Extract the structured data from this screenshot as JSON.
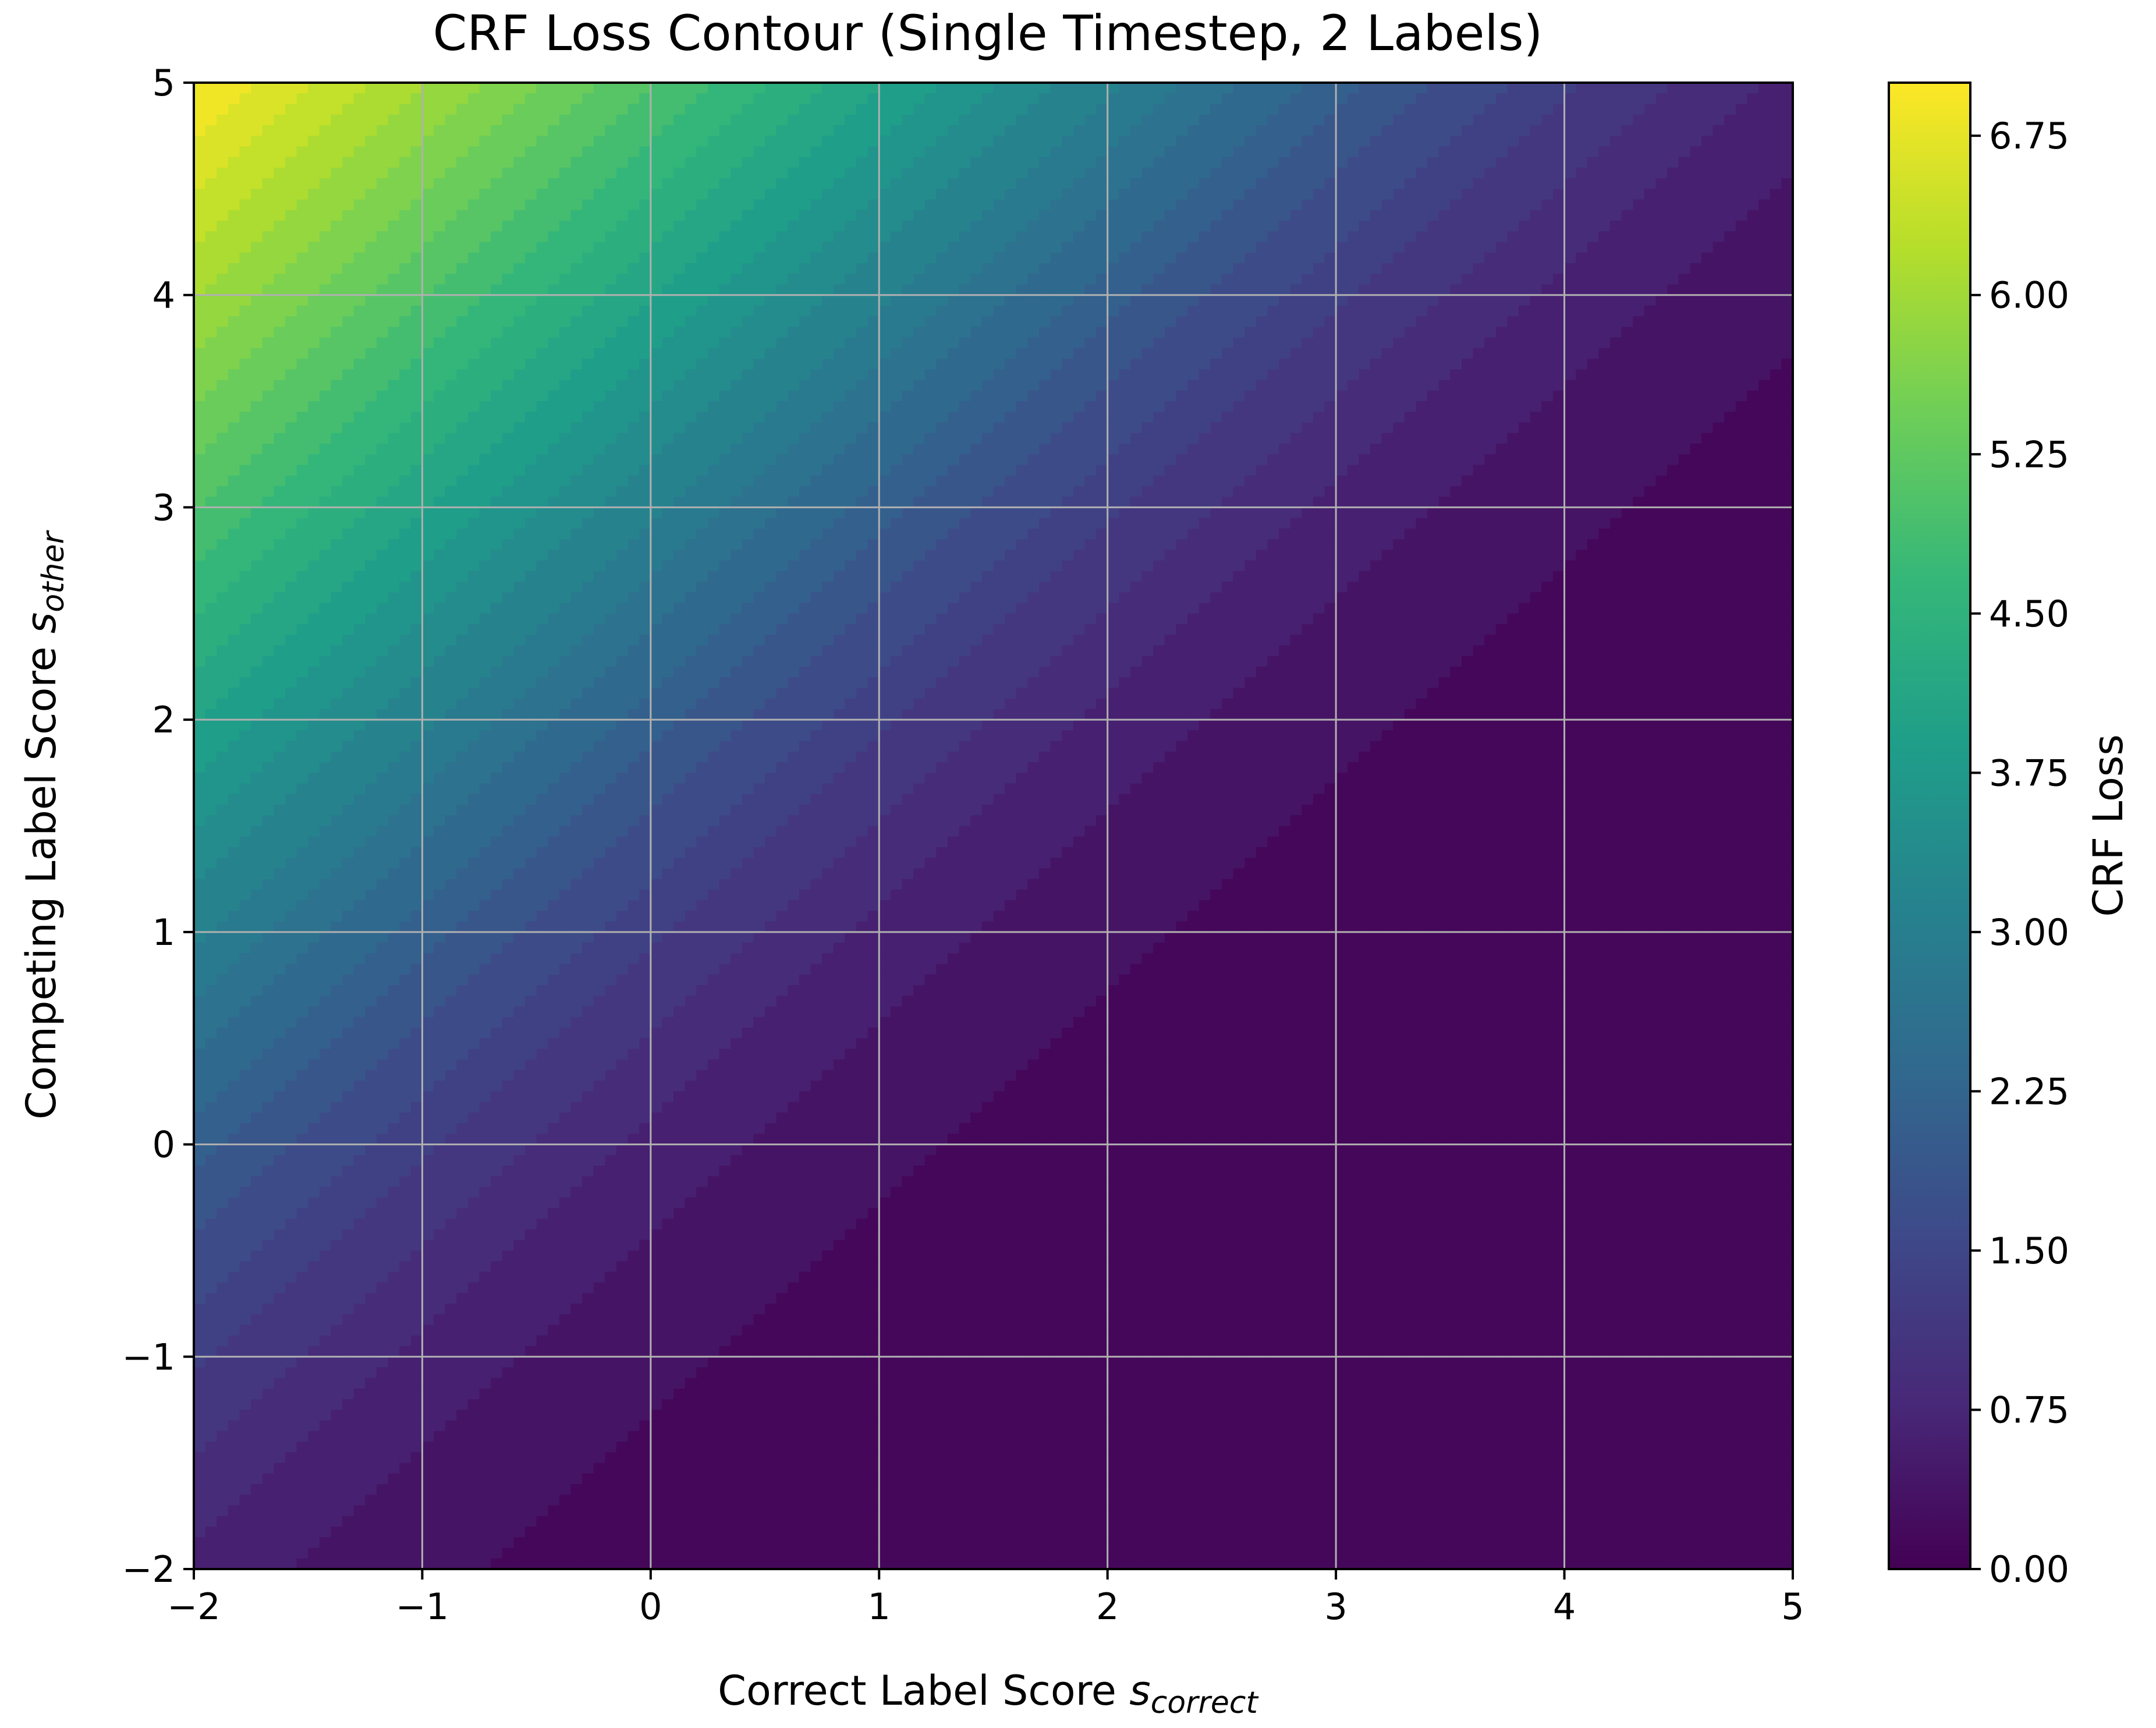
{
  "chart_data": {
    "type": "heatmap",
    "title": "CRF Loss Contour (Single Timestep, 2 Labels)",
    "xlabel": {
      "main": "Correct Label Score ",
      "symbol": "s",
      "subscript": "correct"
    },
    "ylabel": {
      "main": "Competing Label Score ",
      "symbol": "s",
      "subscript": "other"
    },
    "xlim": [
      -2,
      5
    ],
    "ylim": [
      -2,
      5
    ],
    "xticks": [
      {
        "value": -2,
        "label": "−2"
      },
      {
        "value": -1,
        "label": "−1"
      },
      {
        "value": 0,
        "label": "0"
      },
      {
        "value": 1,
        "label": "1"
      },
      {
        "value": 2,
        "label": "2"
      },
      {
        "value": 3,
        "label": "3"
      },
      {
        "value": 4,
        "label": "4"
      },
      {
        "value": 5,
        "label": "5"
      }
    ],
    "yticks": [
      {
        "value": -2,
        "label": "−2"
      },
      {
        "value": -1,
        "label": "−1"
      },
      {
        "value": 0,
        "label": "0"
      },
      {
        "value": 1,
        "label": "1"
      },
      {
        "value": 2,
        "label": "2"
      },
      {
        "value": 3,
        "label": "3"
      },
      {
        "value": 4,
        "label": "4"
      },
      {
        "value": 5,
        "label": "5"
      }
    ],
    "grid": true,
    "function": "loss = log(1 + exp(s_other - s_correct))",
    "value_range": [
      0,
      7.0
    ],
    "colormap": "viridis",
    "colormap_stops": [
      "#440154",
      "#482878",
      "#3e4989",
      "#31688e",
      "#26828e",
      "#1f9e89",
      "#35b779",
      "#6ece58",
      "#b5de2b",
      "#fde725"
    ],
    "colorbar": {
      "label": "CRF Loss",
      "ticks": [
        {
          "value": 0.0,
          "label": "0.00"
        },
        {
          "value": 0.75,
          "label": "0.75"
        },
        {
          "value": 1.5,
          "label": "1.50"
        },
        {
          "value": 2.25,
          "label": "2.25"
        },
        {
          "value": 3.0,
          "label": "3.00"
        },
        {
          "value": 3.75,
          "label": "3.75"
        },
        {
          "value": 4.5,
          "label": "4.50"
        },
        {
          "value": 5.25,
          "label": "5.25"
        },
        {
          "value": 6.0,
          "label": "6.00"
        },
        {
          "value": 6.75,
          "label": "6.75"
        }
      ]
    }
  }
}
